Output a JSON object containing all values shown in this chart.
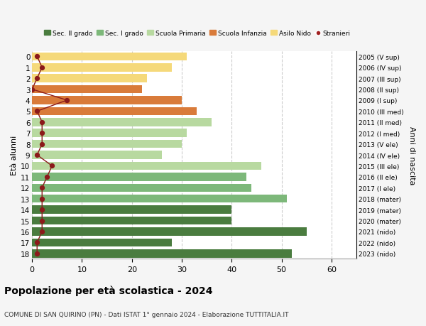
{
  "ages": [
    18,
    17,
    16,
    15,
    14,
    13,
    12,
    11,
    10,
    9,
    8,
    7,
    6,
    5,
    4,
    3,
    2,
    1,
    0
  ],
  "bar_values": [
    52,
    28,
    55,
    40,
    40,
    51,
    44,
    43,
    46,
    26,
    30,
    31,
    36,
    33,
    30,
    22,
    23,
    28,
    31
  ],
  "right_labels": [
    "2005 (V sup)",
    "2006 (IV sup)",
    "2007 (III sup)",
    "2008 (II sup)",
    "2009 (I sup)",
    "2010 (III med)",
    "2011 (II med)",
    "2012 (I med)",
    "2013 (V ele)",
    "2014 (IV ele)",
    "2015 (III ele)",
    "2016 (II ele)",
    "2017 (I ele)",
    "2018 (mater)",
    "2019 (mater)",
    "2020 (mater)",
    "2021 (nido)",
    "2022 (nido)",
    "2023 (nido)"
  ],
  "bar_colors": [
    "#4a7c3f",
    "#4a7c3f",
    "#4a7c3f",
    "#4a7c3f",
    "#4a7c3f",
    "#7db87a",
    "#7db87a",
    "#7db87a",
    "#b8d9a0",
    "#b8d9a0",
    "#b8d9a0",
    "#b8d9a0",
    "#b8d9a0",
    "#d97b3a",
    "#d97b3a",
    "#d97b3a",
    "#f5d97a",
    "#f5d97a",
    "#f5d97a"
  ],
  "stranieri_x_values": [
    1,
    1,
    2,
    2,
    2,
    2,
    2,
    3,
    4,
    1,
    2,
    2,
    2,
    1,
    7,
    0,
    1,
    2,
    1
  ],
  "legend_labels": [
    "Sec. II grado",
    "Sec. I grado",
    "Scuola Primaria",
    "Scuola Infanzia",
    "Asilo Nido",
    "Stranieri"
  ],
  "legend_colors": [
    "#4a7c3f",
    "#7db87a",
    "#b8d9a0",
    "#d97b3a",
    "#f5d97a",
    "#a02020"
  ],
  "title": "Popolazione per età scolastica - 2024",
  "subtitle": "COMUNE DI SAN QUIRINO (PN) - Dati ISTAT 1° gennaio 2024 - Elaborazione TUTTITALIA.IT",
  "ylabel_left": "Età alunni",
  "ylabel_right": "Anni di nascita",
  "xlim": [
    0,
    65
  ],
  "background_color": "#f5f5f5",
  "plot_bg_color": "#ffffff"
}
